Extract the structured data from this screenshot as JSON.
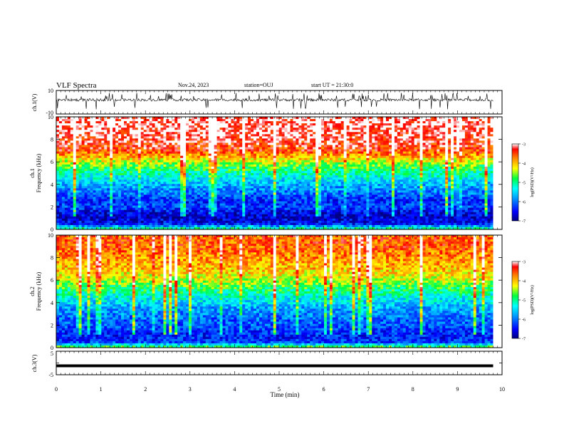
{
  "header": {
    "title": "VLF Spectra",
    "date": "Nov.24, 2023",
    "station": "station=OUJ",
    "start": "start UT = 21:30:0"
  },
  "chart_data": [
    {
      "id": "ch1_waveform",
      "type": "line",
      "ylabel": "ch.1(V)",
      "ylim": [
        -10,
        10
      ],
      "yticks": [
        "10",
        "-10"
      ],
      "baseline": 2,
      "amplitude_range": [
        -6,
        8
      ],
      "x_range": [
        0,
        9.8
      ],
      "colors": {
        "line": "#000000"
      }
    },
    {
      "id": "ch1_spectrogram",
      "type": "heatmap",
      "ylabel": "ch.1",
      "ylabel2": "Frequency (kHz)",
      "ylim": [
        0,
        10
      ],
      "yticks": [
        "0",
        "2",
        "4",
        "6",
        "8",
        "10"
      ],
      "x_range": [
        0,
        9.8
      ],
      "colorbar": {
        "label": "log(PSD)(V²/Hz)",
        "range": [
          -7,
          -3
        ],
        "ticks": [
          "-3",
          "-4",
          "-5",
          "-6",
          "-7"
        ]
      },
      "profile": {
        "freq_khz": [
          0,
          0.5,
          1,
          1.5,
          2,
          2.5,
          3,
          3.5,
          4,
          4.5,
          5,
          5.5,
          6,
          6.5,
          7,
          8,
          9,
          10
        ],
        "log_psd": [
          -4.8,
          -6.5,
          -6.7,
          -6.6,
          -6.2,
          -6.4,
          -6.1,
          -5.9,
          -5.7,
          -5.4,
          -5.1,
          -4.8,
          -4.4,
          -3.9,
          -3.5,
          -3.2,
          -3.1,
          -3.1
        ]
      }
    },
    {
      "id": "ch2_spectrogram",
      "type": "heatmap",
      "ylabel": "ch.2",
      "ylabel2": "Frequency (kHz)",
      "ylim": [
        0,
        10
      ],
      "yticks": [
        "0",
        "2",
        "4",
        "6",
        "8",
        "10"
      ],
      "x_range": [
        0,
        9.8
      ],
      "colorbar": {
        "label": "log(PSD)(V²/Hz)",
        "range": [
          -7,
          -3
        ],
        "ticks": [
          "-3",
          "-4",
          "-5",
          "-6",
          "-7"
        ]
      },
      "profile": {
        "freq_khz": [
          0,
          0.5,
          1,
          1.5,
          2,
          2.5,
          3,
          3.5,
          4,
          4.5,
          5,
          5.5,
          6,
          6.5,
          7,
          8,
          9,
          10
        ],
        "log_psd": [
          -4.5,
          -6.3,
          -6.4,
          -6.3,
          -6.1,
          -6.1,
          -5.9,
          -5.8,
          -5.5,
          -5.3,
          -5.0,
          -4.7,
          -4.4,
          -4.2,
          -4.0,
          -3.8,
          -3.6,
          -3.6
        ]
      }
    },
    {
      "id": "ch3_waveform",
      "type": "line",
      "ylabel": "ch.3(V)",
      "ylim": [
        -5,
        5
      ],
      "yticks": [
        "5",
        "0",
        "-5"
      ],
      "value": -1.2,
      "x_range": [
        0,
        9.8
      ],
      "colors": {
        "line": "#000000"
      }
    }
  ],
  "x_axis": {
    "label": "Time (min)",
    "range": [
      0,
      10
    ],
    "ticks": [
      "0",
      "1",
      "2",
      "3",
      "4",
      "5",
      "6",
      "7",
      "8",
      "9",
      "10"
    ]
  }
}
